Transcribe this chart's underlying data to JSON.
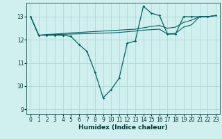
{
  "xlabel": "Humidex (Indice chaleur)",
  "bg_color": "#cff0ee",
  "grid_color": "#b0d8d5",
  "line_color": "#006060",
  "xlim": [
    -0.5,
    23.5
  ],
  "ylim": [
    8.8,
    13.6
  ],
  "yticks": [
    9,
    10,
    11,
    12,
    13
  ],
  "xticks": [
    0,
    1,
    2,
    3,
    4,
    5,
    6,
    7,
    8,
    9,
    10,
    11,
    12,
    13,
    14,
    15,
    16,
    17,
    18,
    19,
    20,
    21,
    22,
    23
  ],
  "series_main": [
    13.0,
    12.2,
    12.2,
    12.2,
    12.2,
    12.15,
    11.8,
    11.5,
    10.6,
    9.5,
    9.85,
    10.35,
    11.85,
    11.95,
    13.45,
    13.15,
    13.05,
    12.25,
    12.25,
    13.0,
    13.0,
    13.0,
    13.0,
    13.05
  ],
  "series_upper": [
    13.0,
    12.2,
    12.23,
    12.25,
    12.27,
    12.3,
    12.32,
    12.34,
    12.36,
    12.38,
    12.4,
    12.42,
    12.44,
    12.46,
    12.52,
    12.58,
    12.62,
    12.5,
    12.55,
    12.75,
    12.85,
    13.0,
    13.0,
    13.05
  ],
  "series_lower": [
    13.0,
    12.2,
    12.22,
    12.23,
    12.24,
    12.25,
    12.26,
    12.27,
    12.28,
    12.29,
    12.3,
    12.32,
    12.35,
    12.38,
    12.42,
    12.44,
    12.46,
    12.25,
    12.28,
    12.55,
    12.65,
    13.0,
    13.0,
    13.05
  ]
}
